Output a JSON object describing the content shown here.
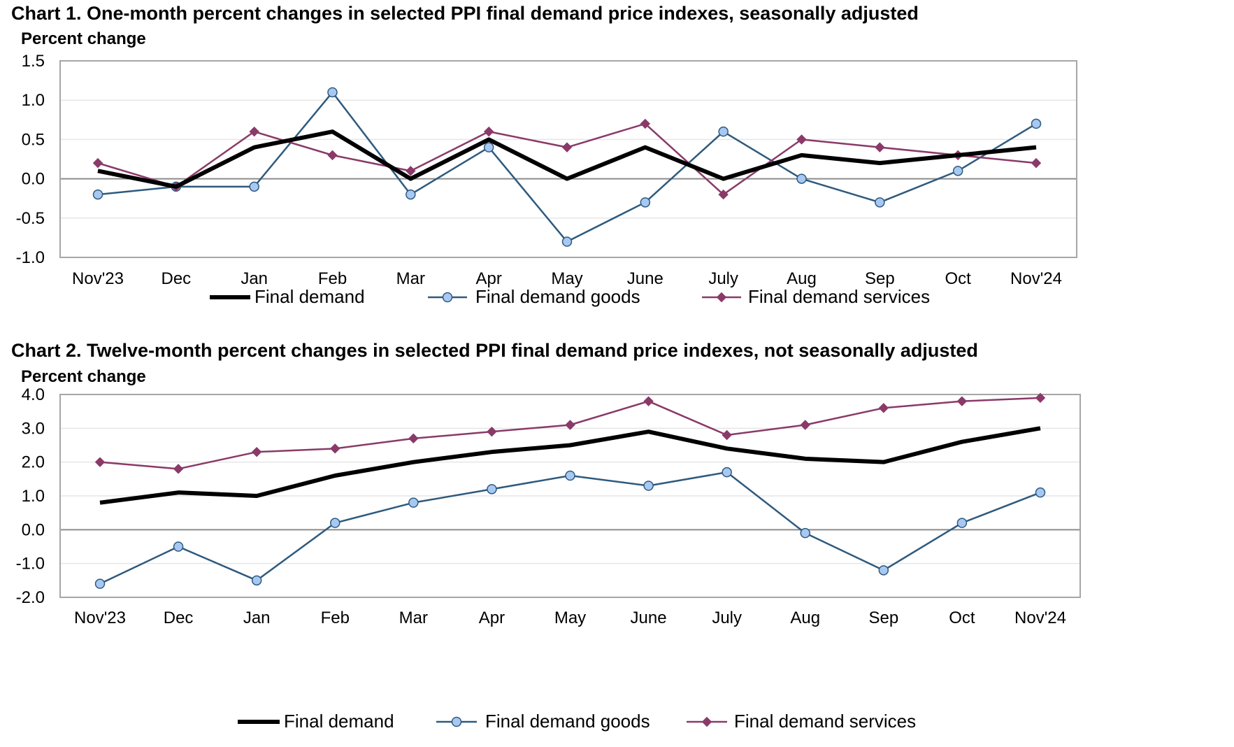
{
  "colors": {
    "final_demand": "#000000",
    "final_demand_goods": "#2e5a7e",
    "goods_marker_fill": "#a7c8f2",
    "final_demand_services": "#8a3a68",
    "gridline": "#e6e6e6",
    "zero_line": "#8c8c8c",
    "frame": "#a6a6a6"
  },
  "chart_data": [
    {
      "type": "line",
      "title": "Chart 1. One-month percent changes in selected PPI final demand price indexes, seasonally adjusted",
      "ylabel": "Percent change",
      "xlabel": "",
      "categories": [
        "Nov'23",
        "Dec",
        "Jan",
        "Feb",
        "Mar",
        "Apr",
        "May",
        "June",
        "July",
        "Aug",
        "Sep",
        "Oct",
        "Nov'24"
      ],
      "ylim": [
        -1.0,
        1.5
      ],
      "yticks": [
        "1.5",
        "1.0",
        "0.5",
        "0.0",
        "-0.5",
        "-1.0"
      ],
      "ytick_values": [
        1.5,
        1.0,
        0.5,
        0.0,
        -0.5,
        -1.0
      ],
      "grid": true,
      "legend_position": "bottom",
      "series": [
        {
          "name": "Final demand",
          "marker": "none",
          "values": [
            0.1,
            -0.1,
            0.4,
            0.6,
            0.0,
            0.5,
            0.0,
            0.4,
            0.0,
            0.3,
            0.2,
            0.3,
            0.4
          ]
        },
        {
          "name": "Final demand goods",
          "marker": "circle",
          "values": [
            -0.2,
            -0.1,
            -0.1,
            1.1,
            -0.2,
            0.4,
            -0.8,
            -0.3,
            0.6,
            0.0,
            -0.3,
            0.1,
            0.7
          ]
        },
        {
          "name": "Final demand services",
          "marker": "diamond",
          "values": [
            0.2,
            -0.1,
            0.6,
            0.3,
            0.1,
            0.6,
            0.4,
            0.7,
            -0.2,
            0.5,
            0.4,
            0.3,
            0.2
          ]
        }
      ]
    },
    {
      "type": "line",
      "title": "Chart 2. Twelve-month percent changes in selected PPI final demand price indexes, not seasonally adjusted",
      "ylabel": "Percent change",
      "xlabel": "",
      "categories": [
        "Nov'23",
        "Dec",
        "Jan",
        "Feb",
        "Mar",
        "Apr",
        "May",
        "June",
        "July",
        "Aug",
        "Sep",
        "Oct",
        "Nov'24"
      ],
      "ylim": [
        -2.0,
        4.0
      ],
      "yticks": [
        "4.0",
        "3.0",
        "2.0",
        "1.0",
        "0.0",
        "-1.0",
        "-2.0"
      ],
      "ytick_values": [
        4.0,
        3.0,
        2.0,
        1.0,
        0.0,
        -1.0,
        -2.0
      ],
      "grid": true,
      "legend_position": "bottom",
      "series": [
        {
          "name": "Final demand",
          "marker": "none",
          "values": [
            0.8,
            1.1,
            1.0,
            1.6,
            2.0,
            2.3,
            2.5,
            2.9,
            2.4,
            2.1,
            2.0,
            2.6,
            3.0
          ]
        },
        {
          "name": "Final demand goods",
          "marker": "circle",
          "values": [
            -1.6,
            -0.5,
            -1.5,
            0.2,
            0.8,
            1.2,
            1.6,
            1.3,
            1.7,
            -0.1,
            -1.2,
            0.2,
            1.1
          ]
        },
        {
          "name": "Final demand services",
          "marker": "diamond",
          "values": [
            2.0,
            1.8,
            2.3,
            2.4,
            2.7,
            2.9,
            3.1,
            3.8,
            2.8,
            3.1,
            3.6,
            3.8,
            3.9
          ]
        }
      ]
    }
  ]
}
